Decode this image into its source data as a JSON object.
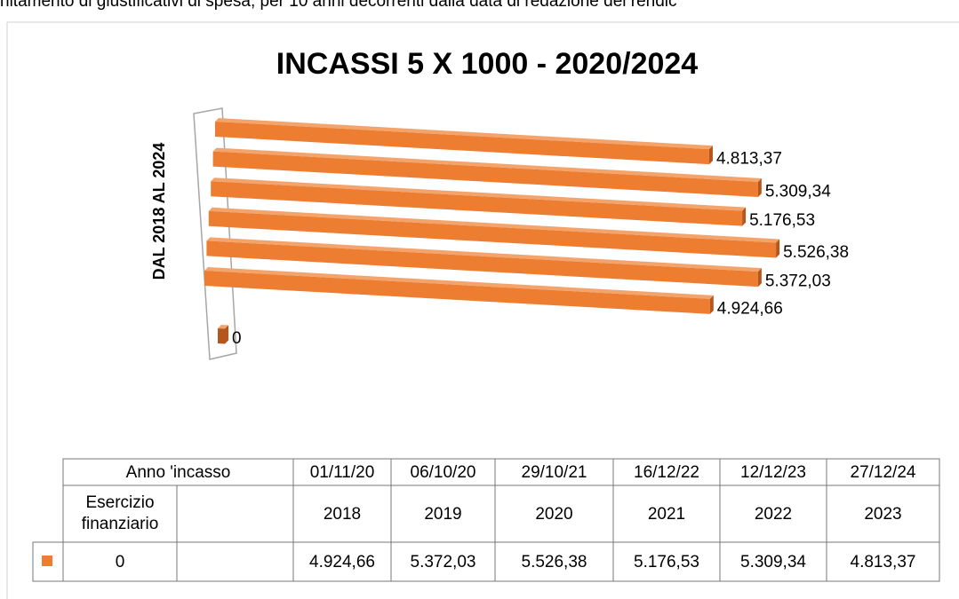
{
  "header_text": "nitamento di giustificativi di spesa, per 10 anni decorrenti dalla data di redazione del rendic",
  "chart_data": {
    "type": "bar3d",
    "title": "INCASSI 5 X 1000 - 2020/2024",
    "y_label": "DAL 2018 AL 2024",
    "categories": [
      null,
      "2018",
      "2019",
      "2020",
      "2021",
      "2022",
      "2023"
    ],
    "dates": [
      null,
      "01/11/20",
      "06/10/20",
      "29/10/21",
      "16/12/22",
      "12/12/23",
      "27/12/24"
    ],
    "row_headers": [
      "Anno 'incasso",
      "Esercizio finanziario"
    ],
    "series": [
      {
        "name": "0",
        "color": "#ed7d31",
        "values": [
          0,
          4924.66,
          5372.03,
          5526.38,
          5176.53,
          5309.34,
          4813.37
        ],
        "value_labels": [
          "0",
          "4.924,66",
          "5.372,03",
          "5.526,38",
          "5.176,53",
          "5.309,34",
          "4.813,37"
        ]
      }
    ]
  }
}
